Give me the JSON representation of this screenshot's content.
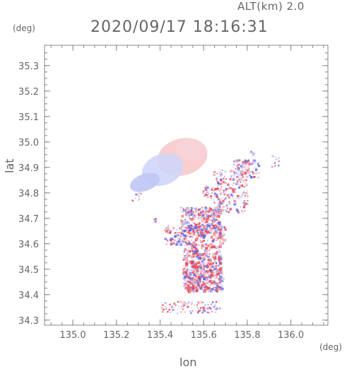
{
  "header": {
    "altitude_label": "ALT(km) 2.0",
    "timestamp": "2020/09/17 18:16:31"
  },
  "axes": {
    "y_unit": "(deg)",
    "x_unit": "(deg)",
    "y_label": "lat",
    "x_label": "lon",
    "x_range": [
      134.87,
      136.17
    ],
    "y_range": [
      34.28,
      35.38
    ],
    "x_ticks": [
      "135.0",
      "135.2",
      "135.4",
      "135.6",
      "135.8",
      "136.0"
    ],
    "x_tick_values": [
      135.0,
      135.2,
      135.4,
      135.6,
      135.8,
      136.0
    ],
    "y_ticks": [
      "35.3",
      "35.2",
      "35.1",
      "35.0",
      "34.9",
      "34.8",
      "34.7",
      "34.6",
      "34.5",
      "34.4",
      "34.3"
    ],
    "y_tick_values": [
      35.3,
      35.2,
      35.1,
      35.0,
      34.9,
      34.8,
      34.7,
      34.6,
      34.5,
      34.4,
      34.3
    ]
  },
  "colors": {
    "toward": "#3a4cf0",
    "away": "#f03a3a",
    "frame": "#888888"
  }
}
